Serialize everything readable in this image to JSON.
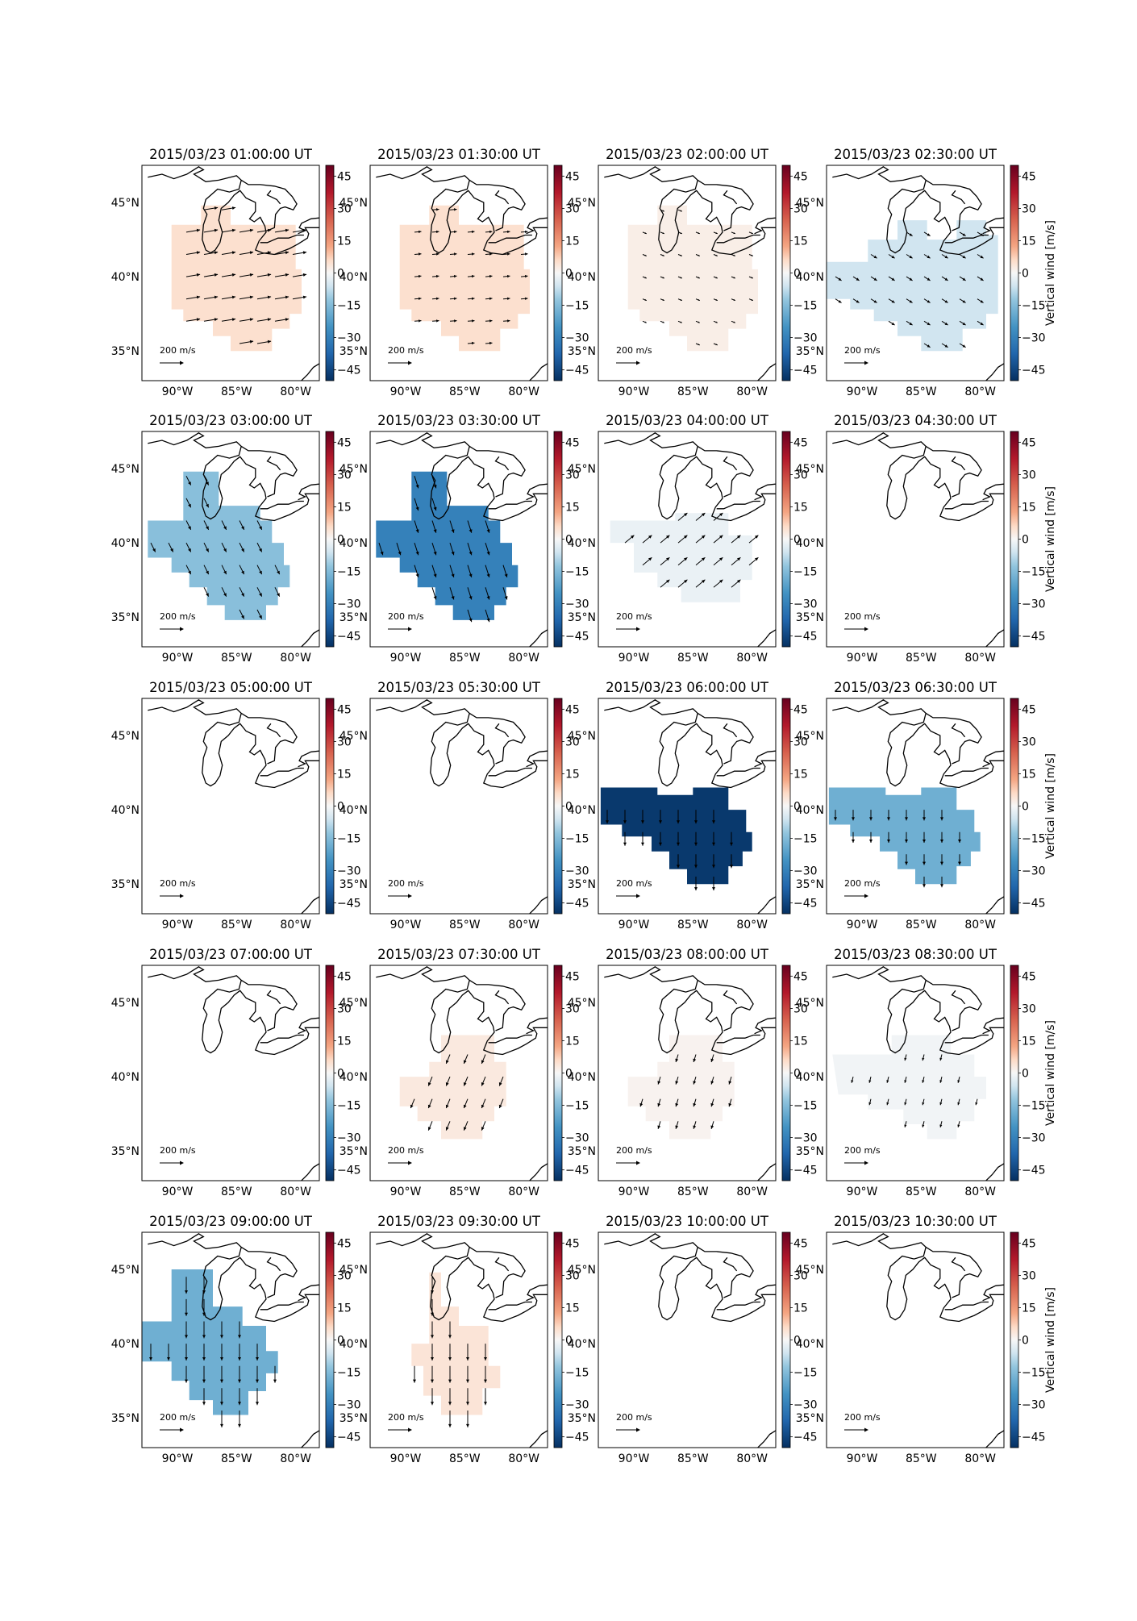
{
  "figure": {
    "colorbar_label": "Vertical wind [m/s]",
    "colorbar_ticks": [
      "45",
      "30",
      "15",
      "0",
      "−15",
      "−30",
      "−45"
    ],
    "lat_ticks": [
      "45°N",
      "40°N",
      "35°N"
    ],
    "lon_ticks": [
      "90°W",
      "85°W",
      "80°W"
    ],
    "scale_label": "200 m/s",
    "colors": {
      "positive": "#67001f",
      "negative": "#053061",
      "neutral": "#f7f7f7",
      "land_outline": "#000000"
    }
  },
  "chart_data": {
    "type": "heatmap",
    "description_type": "small-multiples vertical wind maps with horizontal wind vectors",
    "colorbar_range": [
      -50,
      50
    ],
    "lat_range": [
      33,
      47.5
    ],
    "lon_range": [
      -93,
      -78
    ],
    "reference_vector": 200,
    "panels": [
      {
        "title": "2015/03/23 01:00:00 UT",
        "vz": 5,
        "region": "A",
        "u": 90,
        "v": 15
      },
      {
        "title": "2015/03/23 01:30:00 UT",
        "vz": 5,
        "region": "A",
        "u": 45,
        "v": 4
      },
      {
        "title": "2015/03/23 02:00:00 UT",
        "vz": 2,
        "region": "A",
        "u": 25,
        "v": -10
      },
      {
        "title": "2015/03/23 02:30:00 UT",
        "vz": -6,
        "region": "B",
        "u": 40,
        "v": -25
      },
      {
        "title": "2015/03/23 03:00:00 UT",
        "vz": -14,
        "region": "C",
        "u": 30,
        "v": -60
      },
      {
        "title": "2015/03/23 03:30:00 UT",
        "vz": -30,
        "region": "C",
        "u": 25,
        "v": -80
      },
      {
        "title": "2015/03/23 04:00:00 UT",
        "vz": -2,
        "region": "D",
        "u": 60,
        "v": 50
      },
      {
        "title": "2015/03/23 04:30:00 UT",
        "vz": 0,
        "region": "none",
        "u": 0,
        "v": 0
      },
      {
        "title": "2015/03/23 05:00:00 UT",
        "vz": 0,
        "region": "none",
        "u": 0,
        "v": 0
      },
      {
        "title": "2015/03/23 05:30:00 UT",
        "vz": 0,
        "region": "none",
        "u": 0,
        "v": 0
      },
      {
        "title": "2015/03/23 06:00:00 UT",
        "vz": -48,
        "region": "E",
        "u": 0,
        "v": -90
      },
      {
        "title": "2015/03/23 06:30:00 UT",
        "vz": -18,
        "region": "E",
        "u": 0,
        "v": -70
      },
      {
        "title": "2015/03/23 07:00:00 UT",
        "vz": 0,
        "region": "none",
        "u": 0,
        "v": 0
      },
      {
        "title": "2015/03/23 07:30:00 UT",
        "vz": 3,
        "region": "F",
        "u": -25,
        "v": -60
      },
      {
        "title": "2015/03/23 08:00:00 UT",
        "vz": 1,
        "region": "F",
        "u": -15,
        "v": -50
      },
      {
        "title": "2015/03/23 08:30:00 UT",
        "vz": -1,
        "region": "G",
        "u": -10,
        "v": -40
      },
      {
        "title": "2015/03/23 09:00:00 UT",
        "vz": -18,
        "region": "H",
        "u": 0,
        "v": -110
      },
      {
        "title": "2015/03/23 09:30:00 UT",
        "vz": 4,
        "region": "I",
        "u": 0,
        "v": -110
      },
      {
        "title": "2015/03/23 10:00:00 UT",
        "vz": 0,
        "region": "none",
        "u": 0,
        "v": 0
      },
      {
        "title": "2015/03/23 10:30:00 UT",
        "vz": 0,
        "region": "none",
        "u": 0,
        "v": 0
      }
    ]
  }
}
